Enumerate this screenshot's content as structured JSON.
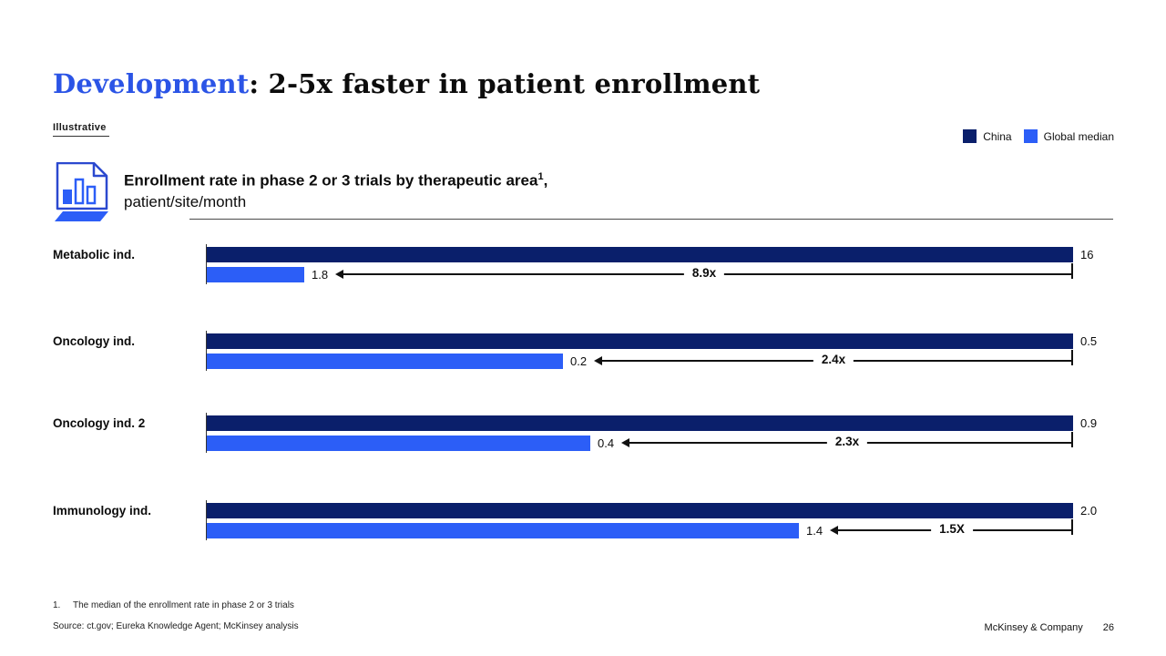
{
  "slide": {
    "title": {
      "highlight": "Development",
      "rest": ": 2-5x faster in patient enrollment"
    },
    "tag_label": "Illustrative",
    "legend": {
      "items": [
        {
          "label": "China",
          "color": "#0A1F6B"
        },
        {
          "label": "Global median",
          "color": "#2C5EF7"
        }
      ]
    },
    "header": {
      "title_bold": "Enrollment rate in phase 2 or 3 trials by therapeutic area",
      "footnote_ref": "1",
      "title_suffix": ",",
      "subtitle": "patient/site/month",
      "icon": "bar-chart-document-icon"
    },
    "footnote": {
      "marker": "1.",
      "text": "The median of the enrollment rate in phase 2 or 3 trials"
    },
    "source_line": "Source: ct.gov; Eureka Knowledge Agent; McKinsey analysis",
    "footer": {
      "company": "McKinsey & Company",
      "page_number": "26"
    }
  },
  "chart_data": {
    "type": "bar",
    "orientation": "horizontal",
    "title": "Enrollment rate in phase 2 or 3 trials by therapeutic area (1), patient/site/month",
    "legend_position": "top-right",
    "series_names": [
      "China",
      "Global median"
    ],
    "colors": {
      "China": "#0A1F6B",
      "Global median": "#2C5EF7"
    },
    "layout_note": "bars normalized per category; China bar drawn full chart width",
    "groups": [
      {
        "category": "Metabolic ind.",
        "china_value": "16",
        "global_value": "1.8",
        "ratio_label": "8.9x",
        "global_bar_fraction": 0.112
      },
      {
        "category": "Oncology ind.",
        "china_value": "0.5",
        "global_value": "0.2",
        "ratio_label": "2.4x",
        "global_bar_fraction": 0.411
      },
      {
        "category": "Oncology ind. 2",
        "china_value": "0.9",
        "global_value": "0.4",
        "ratio_label": "2.3x",
        "global_bar_fraction": 0.443
      },
      {
        "category": "Immunology ind.",
        "china_value": "2.0",
        "global_value": "1.4",
        "ratio_label": "1.5X",
        "global_bar_fraction": 0.683
      }
    ]
  }
}
